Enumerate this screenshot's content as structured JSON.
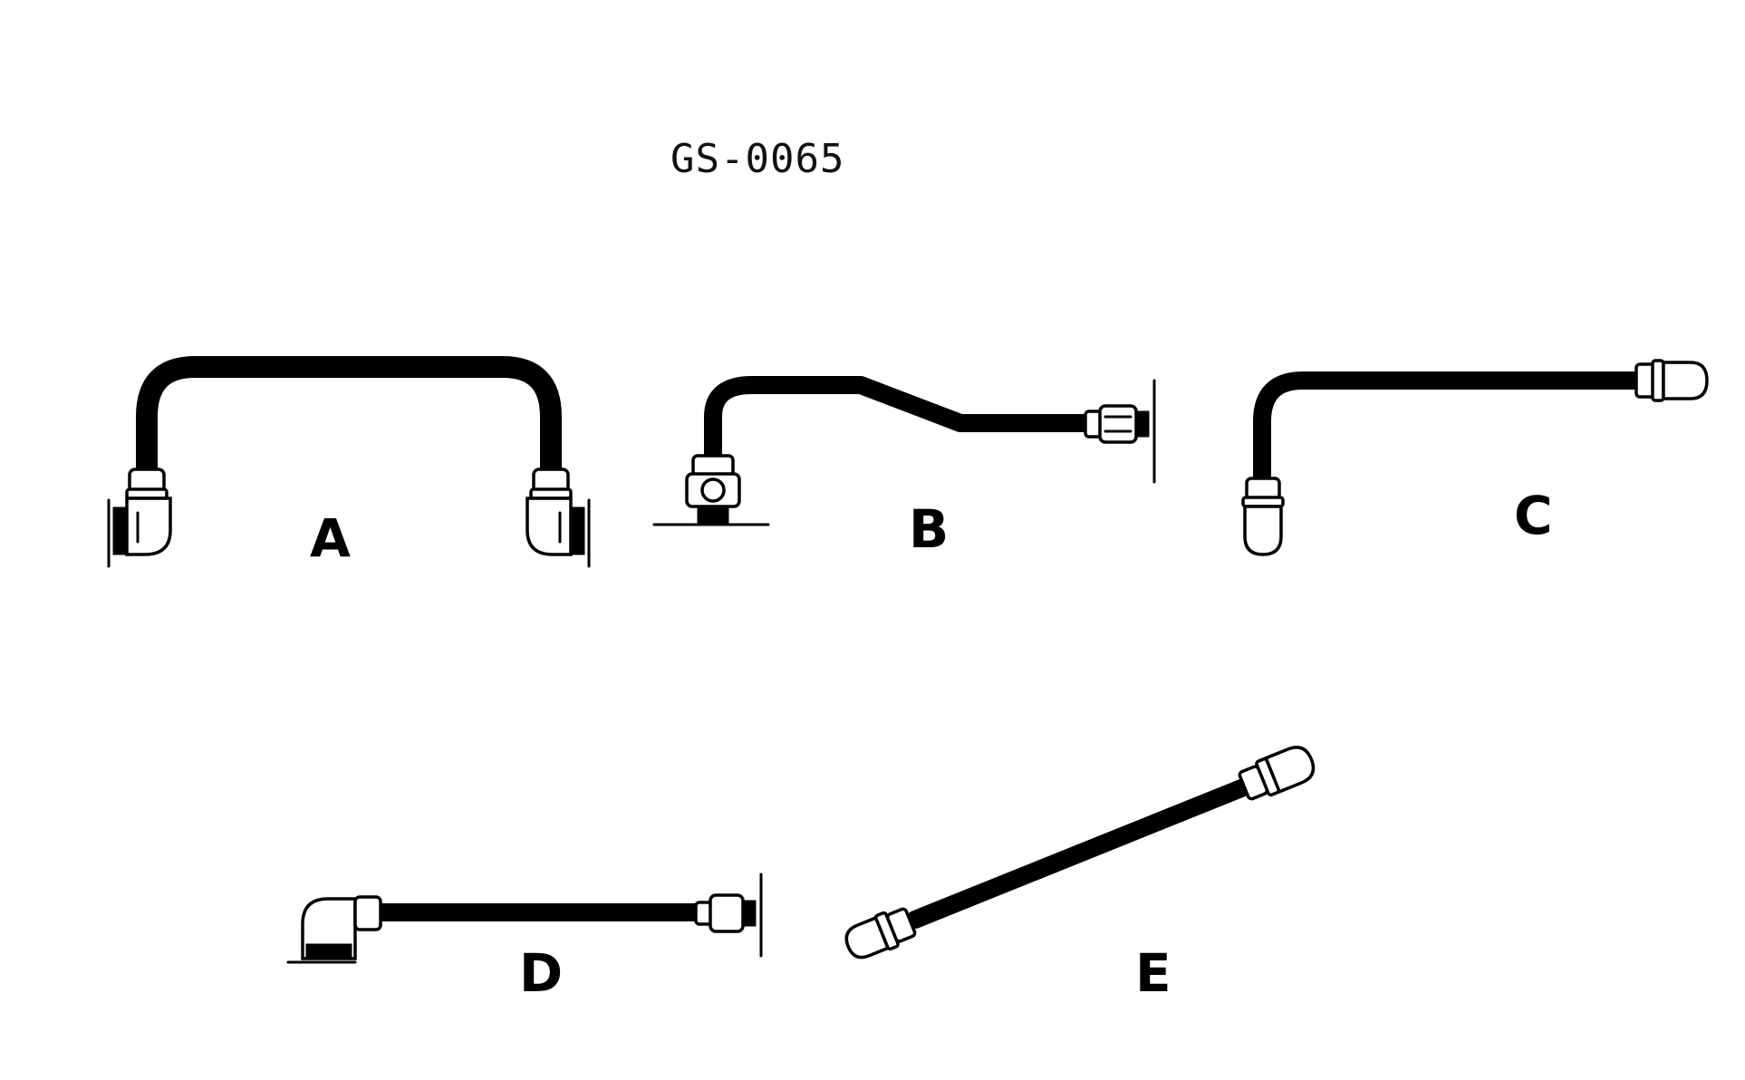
{
  "figure": {
    "code": "GS-0065",
    "parts": [
      {
        "id": "A",
        "label": "A"
      },
      {
        "id": "B",
        "label": "B"
      },
      {
        "id": "C",
        "label": "C"
      },
      {
        "id": "D",
        "label": "D"
      },
      {
        "id": "E",
        "label": "E"
      }
    ]
  }
}
